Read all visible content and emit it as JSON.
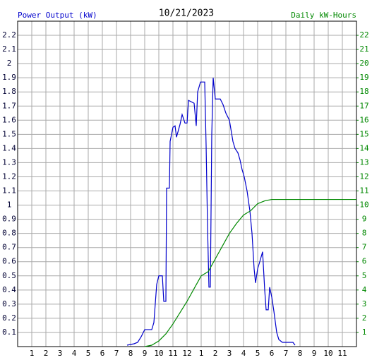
{
  "chart_data": {
    "type": "line",
    "title": "10/21/2023",
    "grid": true,
    "xlim": [
      0,
      24
    ],
    "xticks": [
      1,
      2,
      3,
      4,
      5,
      6,
      7,
      8,
      9,
      10,
      11,
      12,
      {
        "value": 13,
        "label": "1"
      },
      {
        "value": 14,
        "label": "2"
      },
      {
        "value": 15,
        "label": "3"
      },
      {
        "value": 16,
        "label": "4"
      },
      {
        "value": 17,
        "label": "5"
      },
      {
        "value": 18,
        "label": "6"
      },
      {
        "value": 19,
        "label": "7"
      },
      {
        "value": 20,
        "label": "8"
      },
      {
        "value": 21,
        "label": "9"
      },
      {
        "value": 22,
        "label": "10"
      },
      {
        "value": 23,
        "label": "11"
      }
    ],
    "ylim": [
      0,
      2.3
    ],
    "yticks": [
      0.1,
      0.2,
      0.3,
      0.4,
      0.5,
      0.6,
      0.7,
      0.8,
      0.9,
      1.0,
      1.1,
      1.2,
      1.3,
      1.4,
      1.5,
      1.6,
      1.7,
      1.8,
      1.9,
      2.0,
      2.1,
      2.2
    ],
    "y2lim": [
      0,
      23
    ],
    "y2ticks": [
      1,
      2,
      3,
      4,
      5,
      6,
      7,
      8,
      9,
      10,
      11,
      12,
      13,
      14,
      15,
      16,
      17,
      18,
      19,
      20,
      21,
      22
    ],
    "series": [
      {
        "name": "Power Output (kW)",
        "color": "#0000cc",
        "x": [
          7.75,
          8.25,
          8.5,
          8.75,
          9,
          9.5,
          9.65,
          9.85,
          10,
          10.25,
          10.35,
          10.5,
          10.55,
          10.75,
          10.8,
          11,
          11.15,
          11.25,
          11.5,
          11.65,
          11.85,
          12,
          12.1,
          12.5,
          12.65,
          12.75,
          12.95,
          13.25,
          13.35,
          13.45,
          13.55,
          13.65,
          13.75,
          13.85,
          14,
          14.35,
          14.55,
          14.75,
          15,
          15.25,
          15.4,
          15.6,
          15.75,
          15.9,
          16.05,
          16.25,
          16.45,
          16.6,
          16.75,
          16.85,
          17,
          17.15,
          17.35,
          17.5,
          17.6,
          17.75,
          17.85,
          18,
          18.15,
          18.35,
          18.5,
          18.75,
          19.5,
          19.65
        ],
        "values": [
          0.01,
          0.02,
          0.03,
          0.07,
          0.12,
          0.12,
          0.17,
          0.44,
          0.5,
          0.5,
          0.32,
          0.32,
          1.12,
          1.12,
          1.45,
          1.55,
          1.56,
          1.48,
          1.57,
          1.64,
          1.58,
          1.58,
          1.74,
          1.72,
          1.56,
          1.8,
          1.87,
          1.87,
          1.42,
          0.85,
          0.42,
          0.42,
          1.5,
          1.9,
          1.75,
          1.75,
          1.71,
          1.65,
          1.6,
          1.45,
          1.4,
          1.37,
          1.32,
          1.25,
          1.2,
          1.1,
          0.96,
          0.8,
          0.55,
          0.45,
          0.55,
          0.6,
          0.67,
          0.4,
          0.26,
          0.26,
          0.42,
          0.35,
          0.25,
          0.1,
          0.05,
          0.03,
          0.03,
          0.01
        ]
      },
      {
        "name": "Daily kW-Hours",
        "color": "#008800",
        "axis": "y2",
        "x": [
          9,
          9.5,
          10,
          10.5,
          11,
          11.5,
          12,
          12.5,
          13,
          13.5,
          14,
          14.5,
          15,
          15.5,
          16,
          16.5,
          17,
          17.5,
          18,
          18.5,
          24
        ],
        "values": [
          0,
          0.1,
          0.4,
          0.9,
          1.6,
          2.4,
          3.2,
          4.1,
          5,
          5.3,
          6.2,
          7.1,
          8,
          8.7,
          9.3,
          9.6,
          10.1,
          10.3,
          10.4,
          10.4,
          10.4
        ]
      }
    ]
  }
}
